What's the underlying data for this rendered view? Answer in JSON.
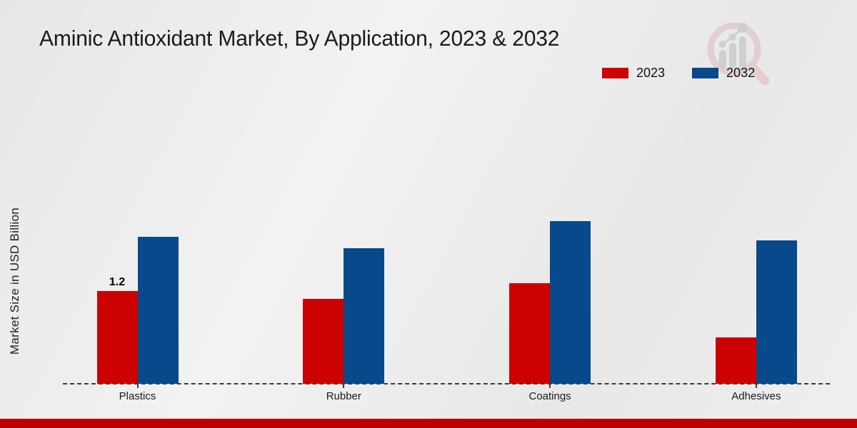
{
  "title": "Aminic Antioxidant Market, By Application, 2023 & 2032",
  "y_axis_label": "Market Size in USD Billion",
  "legend": {
    "items": [
      {
        "label": "2023",
        "color": "#cc0101"
      },
      {
        "label": "2032",
        "color": "#07498a"
      }
    ]
  },
  "chart_data": {
    "type": "bar",
    "categories": [
      "Plastics",
      "Rubber",
      "Coatings",
      "Adhesives"
    ],
    "series": [
      {
        "name": "2023",
        "color": "#cc0101",
        "values": [
          1.2,
          1.1,
          1.3,
          0.6
        ]
      },
      {
        "name": "2032",
        "color": "#07498a",
        "values": [
          1.9,
          1.75,
          2.1,
          1.85
        ]
      }
    ],
    "title": "Aminic Antioxidant Market, By Application, 2023 & 2032",
    "xlabel": "",
    "ylabel": "Market Size in USD Billion",
    "ylim": [
      0,
      2.5
    ],
    "grid": false,
    "legend_position": "top-right",
    "baseline_style": "dashed",
    "annotations": [
      {
        "category": "Plastics",
        "series": "2023",
        "text": "1.2"
      }
    ]
  },
  "colors": {
    "series_2023": "#cc0101",
    "series_2032": "#07498a",
    "baseline": "#3c3c3c",
    "bottom_strip": "#bb0000",
    "watermark_ring": "#c97f7f",
    "watermark_bars": "#cdcdcd"
  }
}
